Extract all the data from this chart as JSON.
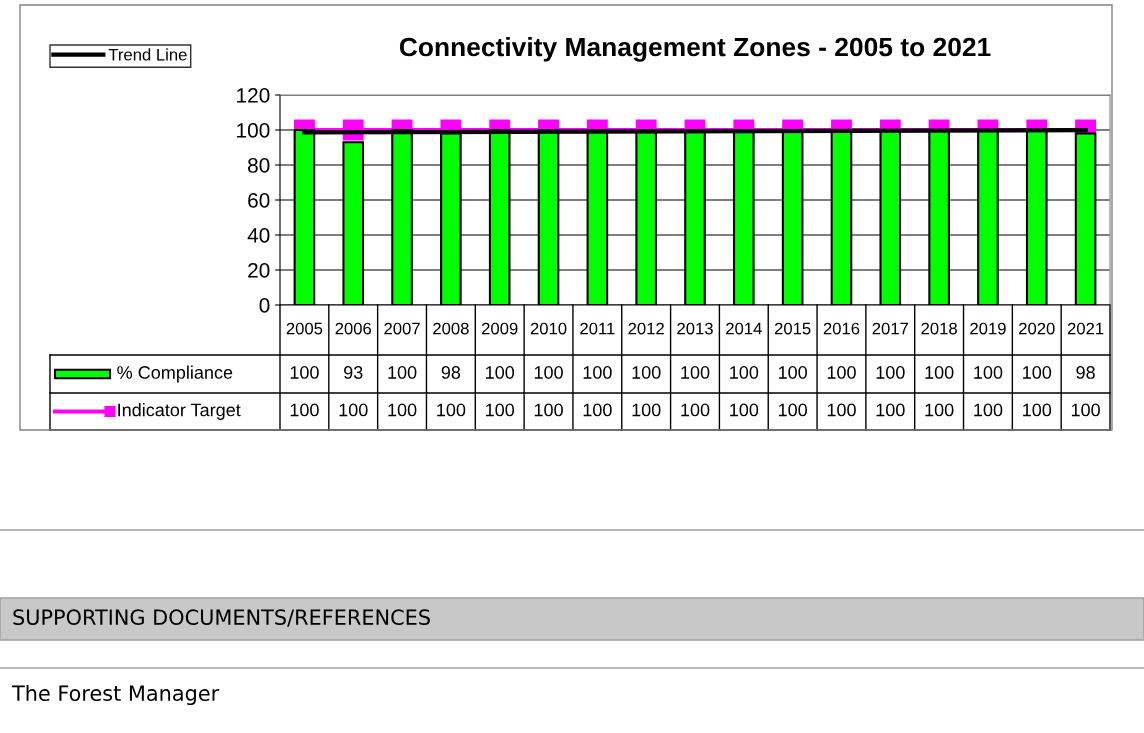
{
  "chart_data": {
    "type": "bar",
    "title": "Connectivity Management Zones - 2005 to 2021",
    "categories": [
      "2005",
      "2006",
      "2007",
      "2008",
      "2009",
      "2010",
      "2011",
      "2012",
      "2013",
      "2014",
      "2015",
      "2016",
      "2017",
      "2018",
      "2019",
      "2020",
      "2021"
    ],
    "series": [
      {
        "name": "% Compliance",
        "color": "#00ff00",
        "values": [
          100,
          93,
          100,
          98,
          100,
          100,
          100,
          100,
          100,
          100,
          100,
          100,
          100,
          100,
          100,
          100,
          98
        ],
        "value_labels": [
          "100",
          "93",
          "100",
          "98",
          "100",
          "100",
          "100",
          "100",
          "100",
          "100",
          "100",
          "100",
          "100",
          "100",
          "100",
          "100",
          "98"
        ]
      },
      {
        "name": "Indicator Target",
        "type": "line",
        "color": "#ff00ff",
        "marker": "square",
        "values": [
          100,
          100,
          100,
          100,
          100,
          100,
          100,
          100,
          100,
          100,
          100,
          100,
          100,
          100,
          100,
          100,
          100
        ],
        "value_labels": [
          "100",
          "100",
          "100",
          "100",
          "100",
          "100",
          "100",
          "100",
          "100",
          "100",
          "100",
          "100",
          "100",
          "100",
          "100",
          "100",
          "100"
        ]
      },
      {
        "name": "Trend Line",
        "type": "line",
        "color": "#000000",
        "values": [
          98.6,
          null,
          null,
          null,
          null,
          null,
          null,
          null,
          null,
          null,
          null,
          null,
          null,
          null,
          null,
          null,
          99.9
        ]
      }
    ],
    "ylim": [
      0,
      120
    ],
    "yticks": [
      0,
      20,
      40,
      60,
      80,
      100,
      120
    ],
    "grid": "y",
    "legend": "left",
    "annotations": [
      "SUPPORTING DOCUMENTS/REFERENCES",
      "The Forest Manager"
    ]
  }
}
